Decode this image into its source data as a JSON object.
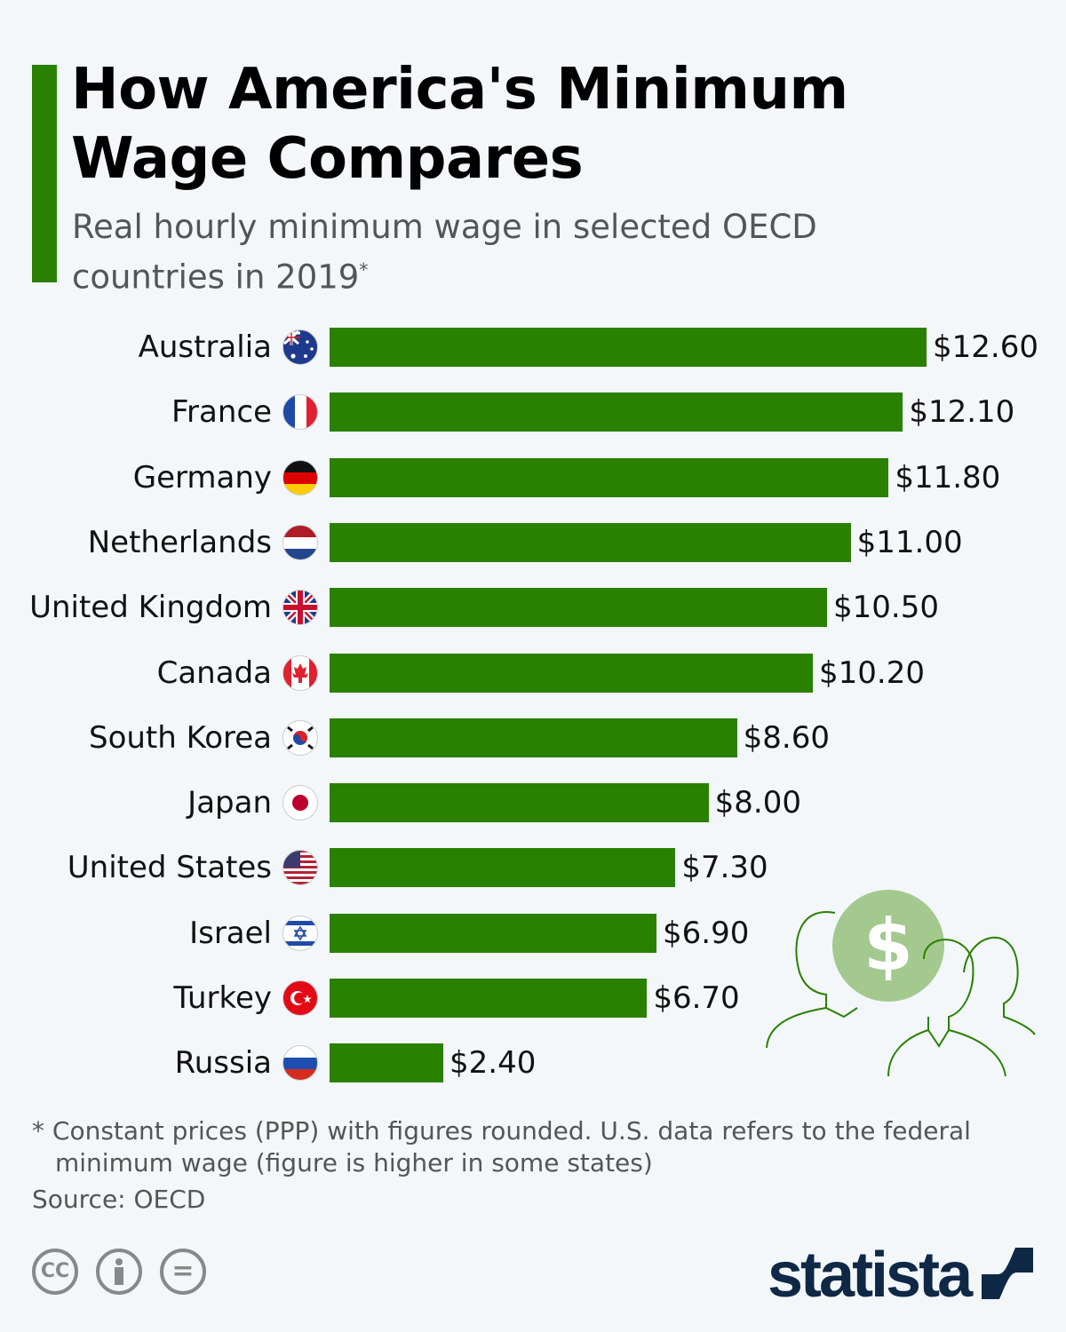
{
  "title": "How America's Minimum Wage Compares",
  "subtitle": "Real hourly minimum wage in selected OECD countries in 2019",
  "subtitle_marker": "*",
  "chart_data": {
    "type": "bar",
    "orientation": "horizontal",
    "title": "How America's Minimum Wage Compares",
    "subtitle": "Real hourly minimum wage in selected OECD countries in 2019",
    "categories": [
      "Australia",
      "France",
      "Germany",
      "Netherlands",
      "United Kingdom",
      "Canada",
      "South Korea",
      "Japan",
      "United States",
      "Israel",
      "Turkey",
      "Russia"
    ],
    "values": [
      12.6,
      12.1,
      11.8,
      11.0,
      10.5,
      10.2,
      8.6,
      8.0,
      7.3,
      6.9,
      6.7,
      2.4
    ],
    "data_labels": [
      "$12.60",
      "$12.10",
      "$11.80",
      "$11.00",
      "$10.50",
      "$10.20",
      "$8.60",
      "$8.00",
      "$7.30",
      "$6.90",
      "$6.70",
      "$2.40"
    ],
    "xlim": [
      0,
      12.6
    ],
    "grid": false,
    "bar_color": "#2a8000"
  },
  "flags": [
    "australia-flag",
    "france-flag",
    "germany-flag",
    "netherlands-flag",
    "uk-flag",
    "canada-flag",
    "south-korea-flag",
    "japan-flag",
    "usa-flag",
    "israel-flag",
    "turkey-flag",
    "russia-flag"
  ],
  "footnote": {
    "line1": "* Constant prices (PPP) with figures rounded. U.S. data refers to the federal",
    "line2": "minimum wage (figure is higher in some states)"
  },
  "source": "Source: OECD",
  "license_icons": {
    "cc": "CC",
    "equals": "="
  },
  "logo": "statista",
  "colors": {
    "accent": "#2a8000",
    "logo": "#0f2846",
    "background": "#f3f7fa"
  }
}
